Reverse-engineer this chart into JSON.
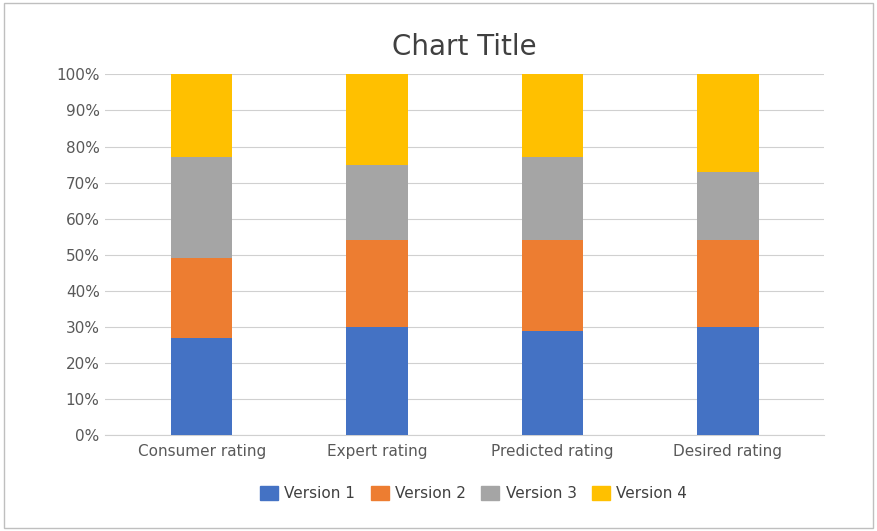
{
  "categories": [
    "Consumer rating",
    "Expert rating",
    "Predicted rating",
    "Desired rating"
  ],
  "series": {
    "Version 1": [
      27,
      30,
      29,
      30
    ],
    "Version 2": [
      22,
      24,
      25,
      24
    ],
    "Version 3": [
      28,
      21,
      23,
      19
    ],
    "Version 4": [
      23,
      25,
      23,
      27
    ]
  },
  "colors": {
    "Version 1": "#4472C4",
    "Version 2": "#ED7D31",
    "Version 3": "#A5A5A5",
    "Version 4": "#FFC000"
  },
  "title": "Chart Title",
  "title_fontsize": 20,
  "ylim": [
    0,
    100
  ],
  "ytick_labels": [
    "0%",
    "10%",
    "20%",
    "30%",
    "40%",
    "50%",
    "60%",
    "70%",
    "80%",
    "90%",
    "100%"
  ],
  "ytick_values": [
    0,
    10,
    20,
    30,
    40,
    50,
    60,
    70,
    80,
    90,
    100
  ],
  "legend_order": [
    "Version 1",
    "Version 2",
    "Version 3",
    "Version 4"
  ],
  "background_color": "#FFFFFF",
  "outer_background": "#F2F2F2",
  "bar_width": 0.35,
  "grid_color": "#D0D0D0",
  "tick_color": "#595959",
  "border_color": "#BFBFBF"
}
